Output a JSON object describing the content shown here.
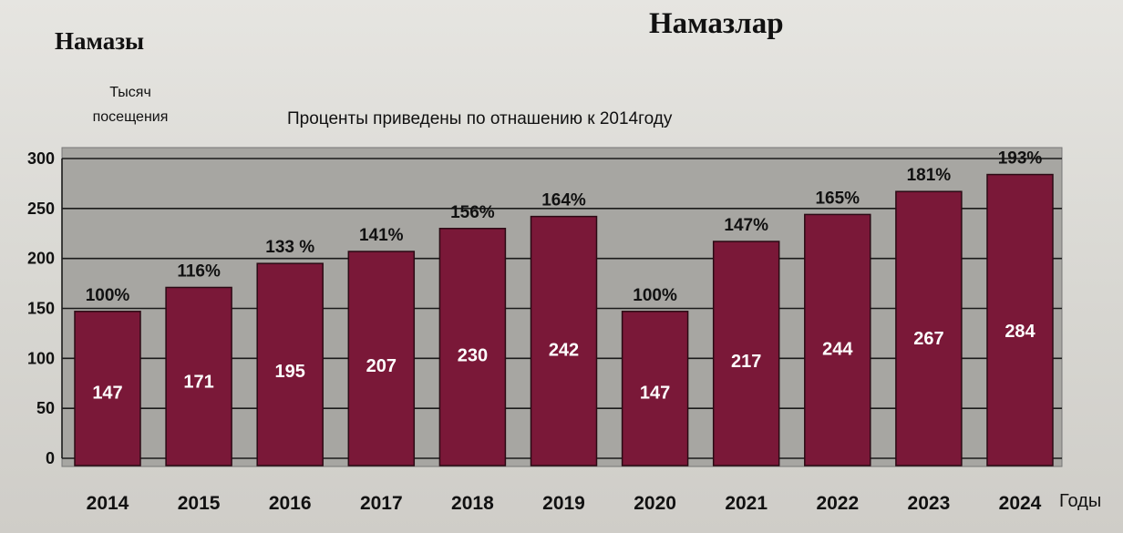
{
  "title": "Намазлар",
  "left_title": "Намазы",
  "ylabel_lines": [
    "Тысяч",
    "посещения"
  ],
  "subtitle": "Проценты приведены по отнашению к 2014году",
  "xunit": "Годы",
  "colors": {
    "bar": "#7a1838",
    "plot_bg": "#a7a6a2",
    "grid": "#1a1a1a"
  },
  "chart_data": {
    "type": "bar",
    "title": "Намазлар",
    "subtitle": "Проценты приведены по отнашению к 2014году",
    "xlabel": "Годы",
    "ylabel": "Тысяч посещения",
    "categories": [
      "2014",
      "2015",
      "2016",
      "2017",
      "2018",
      "2019",
      "2020",
      "2021",
      "2022",
      "2023",
      "2024"
    ],
    "values": [
      147,
      171,
      195,
      207,
      230,
      242,
      147,
      217,
      244,
      267,
      284
    ],
    "value_labels": [
      "147",
      "171",
      "195",
      "207",
      "230",
      "242",
      "147",
      "217",
      "244",
      "267",
      "284"
    ],
    "percent_labels": [
      "100%",
      "116%",
      "133 %",
      "141%",
      "156%",
      "164%",
      "100%",
      "147%",
      "165%",
      "181%",
      "193%"
    ],
    "yticks": [
      "0",
      "50",
      "100",
      "150",
      "200",
      "250",
      "300"
    ],
    "ylim": [
      0,
      300
    ],
    "grid": true,
    "legend": "none"
  }
}
